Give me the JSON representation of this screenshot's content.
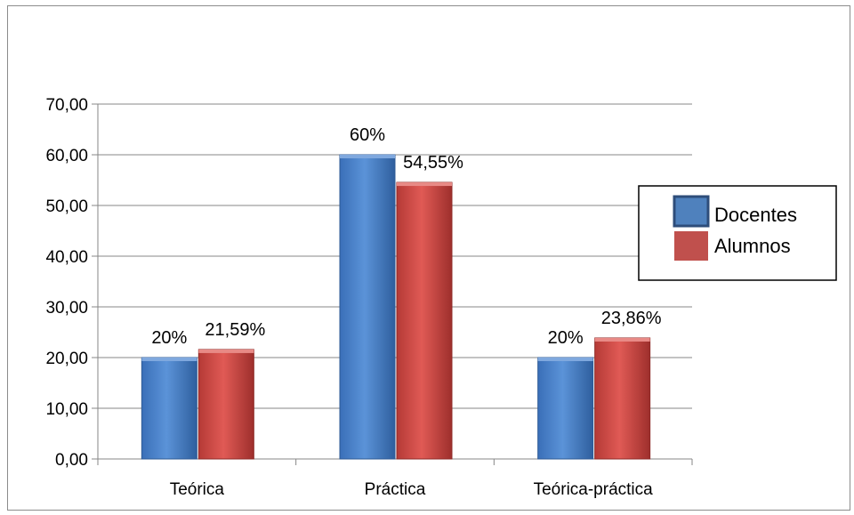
{
  "chart_data": {
    "type": "bar",
    "categories": [
      "Teórica",
      "Práctica",
      "Teórica-práctica"
    ],
    "series": [
      {
        "name": "Docentes",
        "values": [
          20,
          60,
          20
        ],
        "labels": [
          "20%",
          "60%",
          "20%"
        ],
        "color": "#4f81bd"
      },
      {
        "name": "Alumnos",
        "values": [
          21.59,
          54.55,
          23.86
        ],
        "labels": [
          "21,59%",
          "54,55%",
          "23,86%"
        ],
        "color": "#c0504d"
      }
    ],
    "ylim": [
      0,
      70
    ],
    "yticks": [
      "0,00",
      "10,00",
      "20,00",
      "30,00",
      "40,00",
      "50,00",
      "60,00",
      "70,00"
    ],
    "grid": true,
    "legend_position": "right",
    "title": "",
    "xlabel": "",
    "ylabel": ""
  }
}
